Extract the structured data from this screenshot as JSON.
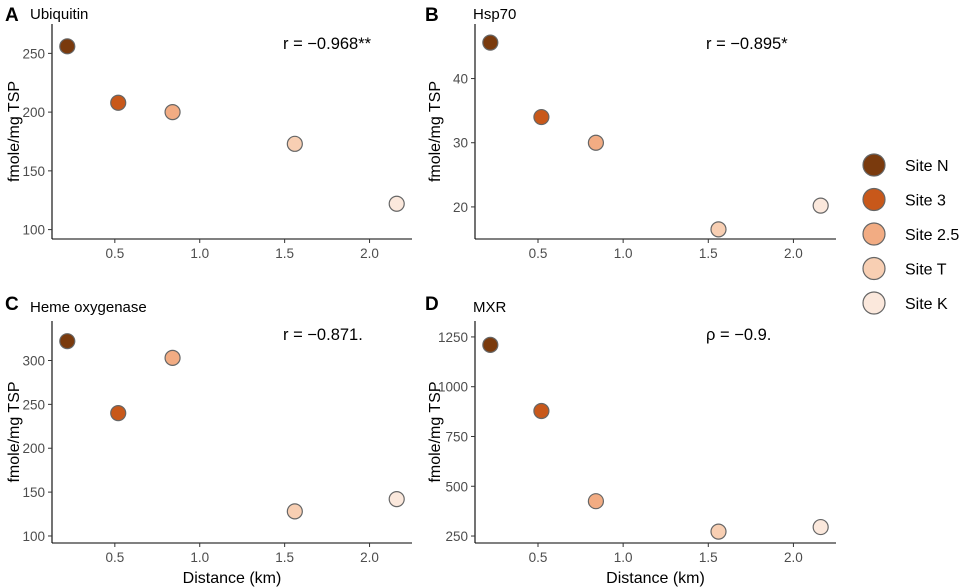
{
  "legend": {
    "items": [
      {
        "label": "Site N",
        "color": "#7a3a0d"
      },
      {
        "label": "Site 3",
        "color": "#c8581a"
      },
      {
        "label": "Site 2.5",
        "color": "#f2ac83"
      },
      {
        "label": "Site T",
        "color": "#f8cfb3"
      },
      {
        "label": "Site K",
        "color": "#fbe8dc"
      }
    ]
  },
  "chart_data": [
    {
      "type": "scatter",
      "panel": "A",
      "title": "Ubiquitin",
      "annotation": "r = −0.968**",
      "xlabel": "",
      "ylabel": "fmole/mg TSP",
      "sites": [
        "Site N",
        "Site 3",
        "Site 2.5",
        "Site T",
        "Site K"
      ],
      "x": [
        0.22,
        0.52,
        0.84,
        1.56,
        2.16
      ],
      "y": [
        256,
        208,
        200,
        173,
        122
      ],
      "xlim": [
        0.13,
        2.25
      ],
      "ylim": [
        92,
        275
      ],
      "xticks": [
        0.5,
        1.0,
        1.5,
        2.0
      ],
      "xtick_labels": [
        "0.5",
        "1.0",
        "1.5",
        "2.0"
      ],
      "yticks": [
        100,
        150,
        200,
        250
      ],
      "ytick_labels": [
        "100",
        "150",
        "200",
        "250"
      ]
    },
    {
      "type": "scatter",
      "panel": "B",
      "title": "Hsp70",
      "annotation": "r = −0.895*",
      "xlabel": "",
      "ylabel": "fmole/mg TSP",
      "sites": [
        "Site N",
        "Site 3",
        "Site 2.5",
        "Site T",
        "Site K"
      ],
      "x": [
        0.22,
        0.52,
        0.84,
        1.56,
        2.16
      ],
      "y": [
        45.6,
        34.0,
        30.0,
        16.5,
        20.2
      ],
      "xlim": [
        0.13,
        2.25
      ],
      "ylim": [
        15.0,
        48.5
      ],
      "xticks": [
        0.5,
        1.0,
        1.5,
        2.0
      ],
      "xtick_labels": [
        "0.5",
        "1.0",
        "1.5",
        "2.0"
      ],
      "yticks": [
        20,
        30,
        40
      ],
      "ytick_labels": [
        "20",
        "30",
        "40"
      ]
    },
    {
      "type": "scatter",
      "panel": "C",
      "title": "Heme oxygenase",
      "annotation": "r = −0.871.",
      "xlabel": "Distance (km)",
      "ylabel": "fmole/mg TSP",
      "sites": [
        "Site N",
        "Site 3",
        "Site 2.5",
        "Site T",
        "Site K"
      ],
      "x": [
        0.22,
        0.52,
        0.84,
        1.56,
        2.16
      ],
      "y": [
        322,
        240,
        303,
        128,
        142
      ],
      "xlim": [
        0.13,
        2.25
      ],
      "ylim": [
        92,
        345
      ],
      "xticks": [
        0.5,
        1.0,
        1.5,
        2.0
      ],
      "xtick_labels": [
        "0.5",
        "1.0",
        "1.5",
        "2.0"
      ],
      "yticks": [
        100,
        150,
        200,
        250,
        300
      ],
      "ytick_labels": [
        "100",
        "150",
        "200",
        "250",
        "300"
      ]
    },
    {
      "type": "scatter",
      "panel": "D",
      "title": "MXR",
      "annotation": "ρ = −0.9.",
      "xlabel": "Distance (km)",
      "ylabel": "fmole/mg TSP",
      "sites": [
        "Site N",
        "Site 3",
        "Site 2.5",
        "Site T",
        "Site K"
      ],
      "x": [
        0.22,
        0.52,
        0.84,
        1.56,
        2.16
      ],
      "y": [
        1210,
        878,
        425,
        272,
        295
      ],
      "xlim": [
        0.13,
        2.25
      ],
      "ylim": [
        215,
        1330
      ],
      "xticks": [
        0.5,
        1.0,
        1.5,
        2.0
      ],
      "xtick_labels": [
        "0.5",
        "1.0",
        "1.5",
        "2.0"
      ],
      "yticks": [
        250,
        500,
        750,
        1000,
        1250
      ],
      "ytick_labels": [
        "250",
        "500",
        "750",
        "1000",
        "1250"
      ]
    }
  ]
}
